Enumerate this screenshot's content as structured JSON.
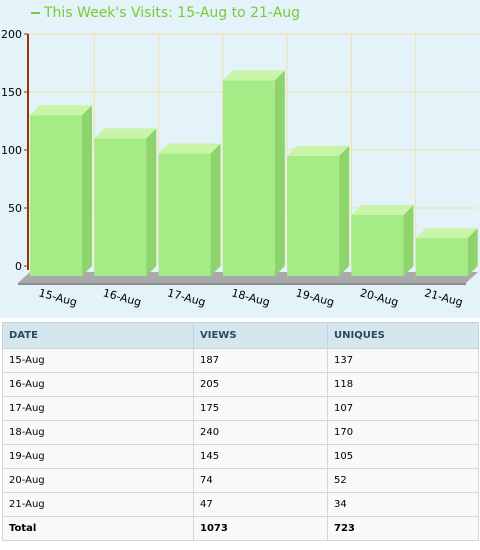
{
  "title": "This Week's Visits: 15-Aug to 21-Aug",
  "colors": {
    "bar_front": "#a6ec86",
    "bar_top": "#c8f5a8",
    "bar_side": "#8fd36c",
    "axis": "#993300",
    "grid": "#f1e3a3",
    "title": "#77cc33"
  },
  "chart_data": {
    "type": "bar",
    "categories": [
      "15-Aug",
      "16-Aug",
      "17-Aug",
      "18-Aug",
      "19-Aug",
      "20-Aug",
      "21-Aug"
    ],
    "values": [
      130,
      110,
      97,
      160,
      95,
      44,
      24
    ],
    "title": "This Week's Visits: 15-Aug to 21-Aug",
    "xlabel": "",
    "ylabel": "",
    "ylim": [
      0,
      200
    ],
    "yticks": [
      0,
      50,
      100,
      150,
      200
    ],
    "grid": true,
    "style": "3d"
  },
  "table": {
    "headers": [
      "DATE",
      "VIEWS",
      "UNIQUES"
    ],
    "rows": [
      [
        "15-Aug",
        "187",
        "137"
      ],
      [
        "16-Aug",
        "205",
        "118"
      ],
      [
        "17-Aug",
        "175",
        "107"
      ],
      [
        "18-Aug",
        "240",
        "170"
      ],
      [
        "19-Aug",
        "145",
        "105"
      ],
      [
        "20-Aug",
        "74",
        "52"
      ],
      [
        "21-Aug",
        "47",
        "34"
      ]
    ],
    "total": [
      "Total",
      "1073",
      "723"
    ]
  }
}
